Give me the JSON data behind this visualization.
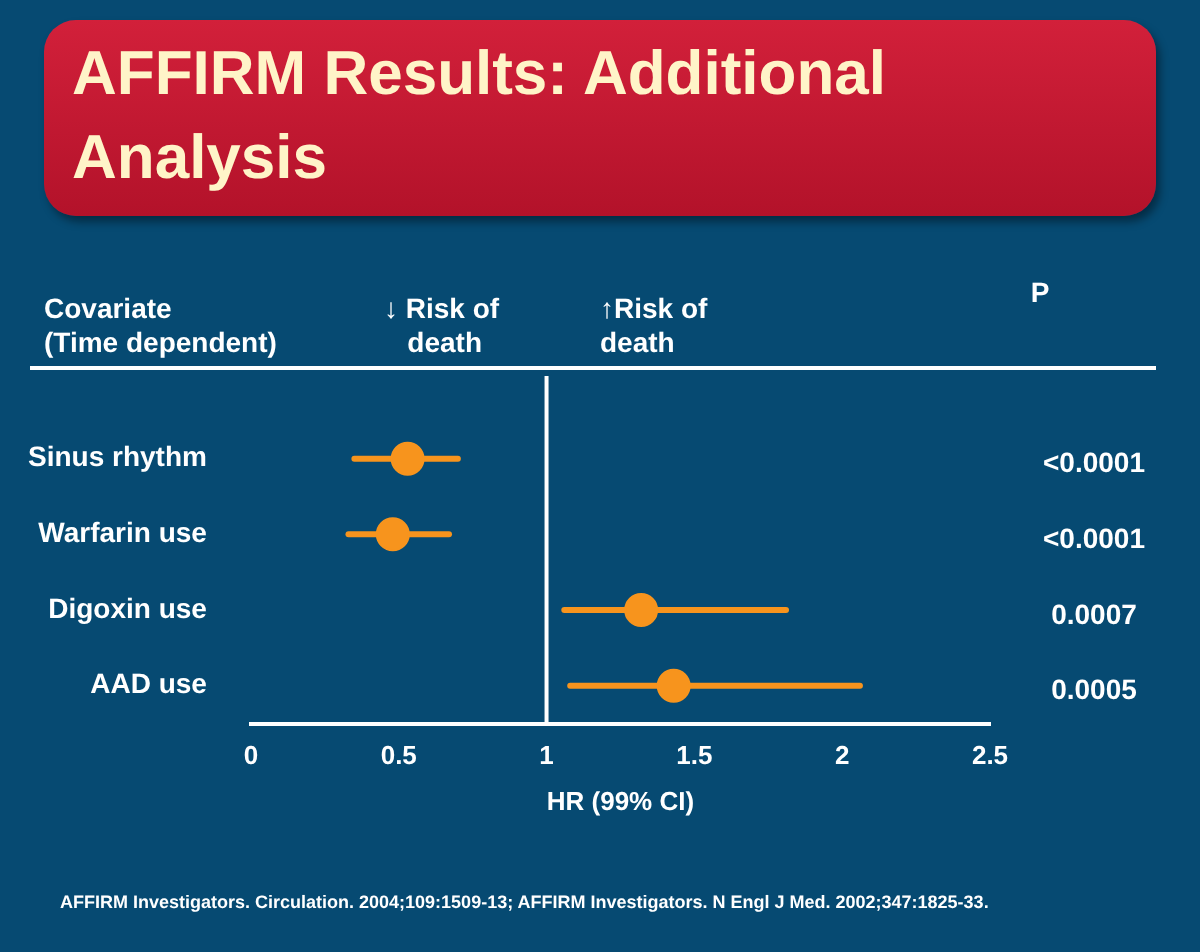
{
  "chart_data": {
    "type": "scatter",
    "orientation": "horizontal",
    "title": "AFFIRM Results: Additional Analysis",
    "xlabel": "HR (99% CI)",
    "ylabel": "Covariate\n(Time dependent)",
    "categories": [
      "Sinus rhythm",
      "Warfarin use",
      "Digoxin use",
      "AAD use"
    ],
    "values": [
      0.53,
      0.48,
      1.32,
      1.43
    ],
    "errors": [
      [
        0.35,
        0.7
      ],
      [
        0.33,
        0.67
      ],
      [
        1.06,
        1.81
      ],
      [
        1.08,
        2.06
      ]
    ],
    "color": "#f7941d",
    "marker": "circle",
    "xlim": [
      0,
      2.5
    ],
    "xticks": [
      0,
      0.5,
      1,
      1.5,
      2,
      2.5
    ],
    "grid": false,
    "legend": false,
    "ref_lines": [
      {
        "axis": "x",
        "value": 1,
        "color": "#ffffff"
      }
    ],
    "annotations": [
      "↓ Risk of\n   death",
      "↑Risk of\ndeath",
      "P",
      "<0.0001",
      "<0.0001",
      "0.0007",
      "0.0005",
      "AFFIRM Investigators. Circulation. 2004;109:1509-13; AFFIRM Investigators. N Engl J Med. 2002;347:1825-33."
    ]
  }
}
